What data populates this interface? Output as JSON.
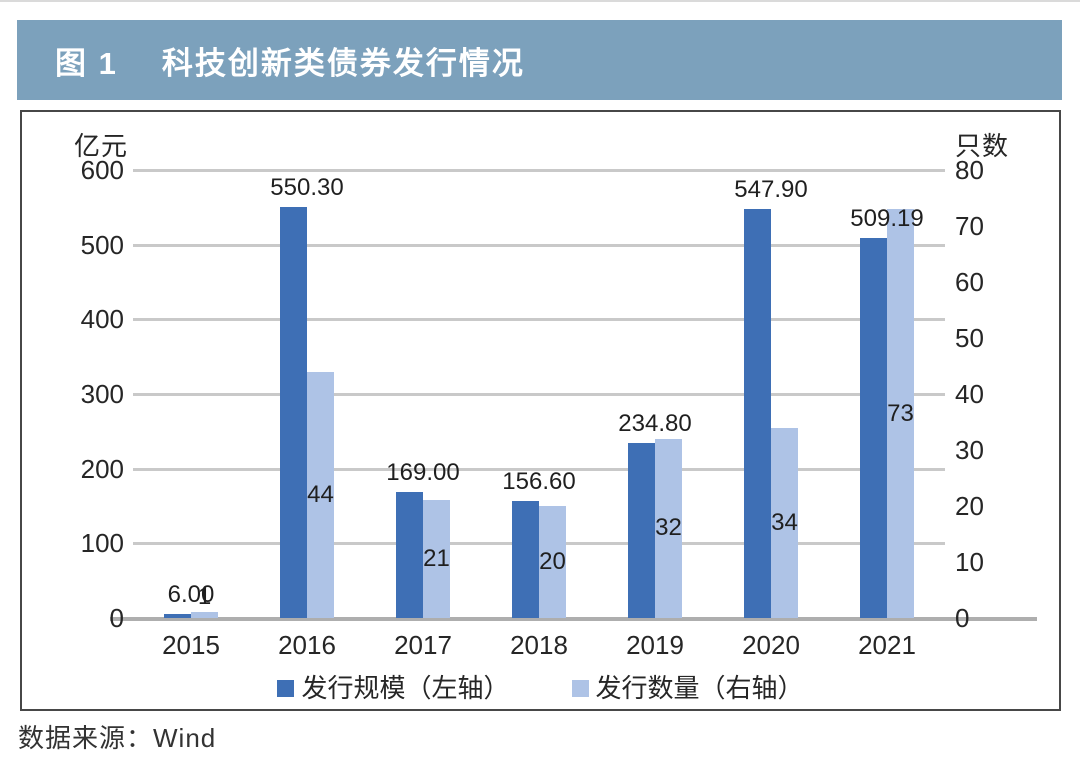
{
  "header": {
    "tag": "图 1",
    "title": "科技创新类债券发行情况"
  },
  "source_note": "数据来源：Wind",
  "colors": {
    "title_bar_bg": "#7CA1BC",
    "title_text": "#ffffff",
    "scale_bar": "#3E6FB5",
    "count_bar": "#AEC3E6",
    "gridline": "#c9c9c9",
    "baseline": "#aeaeae",
    "label_text": "#1f1f1f"
  },
  "chart_data": {
    "type": "bar",
    "categories": [
      "2015",
      "2016",
      "2017",
      "2018",
      "2019",
      "2020",
      "2021"
    ],
    "series": [
      {
        "name": "发行规模（左轴）",
        "axis": "left",
        "color": "#3E6FB5",
        "values": [
          6.0,
          550.3,
          169.0,
          156.6,
          234.8,
          547.9,
          509.19
        ],
        "labels": [
          "6.00",
          "550.30",
          "169.00",
          "156.60",
          "234.80",
          "547.90",
          "509.19"
        ]
      },
      {
        "name": "发行数量（右轴）",
        "axis": "right",
        "color": "#AEC3E6",
        "values": [
          1,
          44,
          21,
          20,
          32,
          34,
          73
        ],
        "labels": [
          "1",
          "44",
          "21",
          "20",
          "32",
          "34",
          "73"
        ]
      }
    ],
    "left_axis": {
      "label": "亿元",
      "min": 0,
      "max": 600,
      "step": 100,
      "ticks": [
        "600",
        "500",
        "400",
        "300",
        "200",
        "100",
        "0"
      ]
    },
    "right_axis": {
      "label": "只数",
      "min": 0,
      "max": 80,
      "step": 10,
      "ticks": [
        "80",
        "70",
        "60",
        "50",
        "40",
        "30",
        "20",
        "10",
        "0"
      ]
    },
    "grid": true,
    "legend_position": "bottom"
  }
}
